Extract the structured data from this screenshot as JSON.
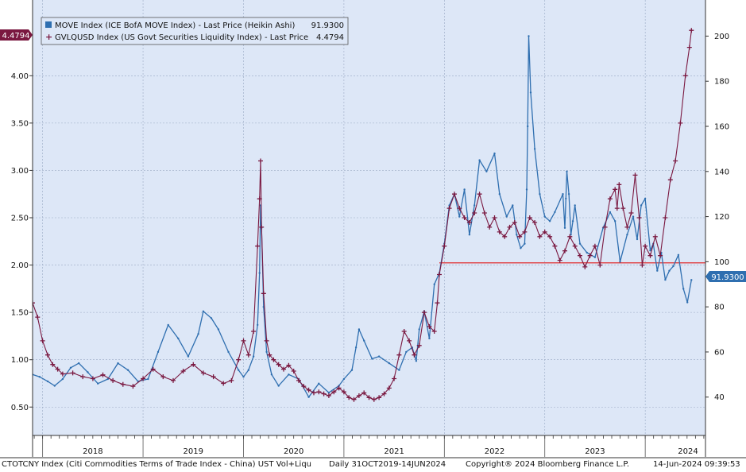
{
  "footer": {
    "source": "CTOTCNY Index (Citi Commodities Terms of Trade Index - China) UST Vol+Liqu",
    "range": "Daily 31OCT2019-14JUN2024",
    "copyright": "Copyright® 2024 Bloomberg Finance L.P.",
    "timestamp": "14-Jun-2024 09:39:53"
  },
  "colors": {
    "plot_bg": "#dde7f7",
    "grid": "#9aa9c4",
    "move": "#2f6fb0",
    "liquidity": "#7a1840",
    "ref_line": "#e01919",
    "left_tag": "#7a1840",
    "right_tag": "#2f6fb0"
  },
  "chart_data": {
    "type": "line",
    "x_tick_labels": [
      "2018",
      "2019",
      "2020",
      "2021",
      "2022",
      "2023",
      "2024"
    ],
    "x_range": [
      2017.9,
      2024.6
    ],
    "left_axis": {
      "ticks": [
        "0.50",
        "1.00",
        "1.50",
        "2.00",
        "2.50",
        "3.00",
        "3.50",
        "4.00"
      ],
      "range": [
        0.2,
        4.8
      ]
    },
    "right_axis": {
      "ticks": [
        "40",
        "60",
        "80",
        "100",
        "120",
        "140",
        "160",
        "180",
        "200"
      ],
      "range": [
        23,
        216
      ]
    },
    "legend": [
      {
        "label": "MOVE Index (ICE BofA MOVE Index) - Last Price (Heikin Ashi)",
        "value": "91.9300"
      },
      {
        "label": "GVLQUSD Index (US Govt Securities Liquidity Index) - Last Price",
        "value": "4.4794"
      }
    ],
    "last_value_tags": {
      "left": "4.4794",
      "right": "91.9300"
    },
    "reference_line": {
      "axis": "right",
      "value": 99.5,
      "from_x": 2021.95
    },
    "series": [
      {
        "name": "MOVE Index (ICE BofA MOVE Index) - Last Price (Heikin Ashi)",
        "axis": "right",
        "style": "line",
        "x": [
          2017.9,
          2017.97,
          2018.05,
          2018.12,
          2018.2,
          2018.28,
          2018.36,
          2018.45,
          2018.55,
          2018.65,
          2018.75,
          2018.85,
          2018.95,
          2019.05,
          2019.15,
          2019.25,
          2019.35,
          2019.45,
          2019.55,
          2019.6,
          2019.68,
          2019.75,
          2019.85,
          2019.95,
          2020.0,
          2020.05,
          2020.1,
          2020.14,
          2020.16,
          2020.17,
          2020.18,
          2020.2,
          2020.23,
          2020.28,
          2020.35,
          2020.45,
          2020.55,
          2020.65,
          2020.75,
          2020.85,
          2020.95,
          2021.0,
          2021.08,
          2021.12,
          2021.15,
          2021.2,
          2021.28,
          2021.35,
          2021.45,
          2021.55,
          2021.62,
          2021.68,
          2021.72,
          2021.75,
          2021.8,
          2021.85,
          2021.9,
          2021.95,
          2022.0,
          2022.05,
          2022.1,
          2022.15,
          2022.2,
          2022.25,
          2022.3,
          2022.35,
          2022.42,
          2022.5,
          2022.55,
          2022.62,
          2022.68,
          2022.72,
          2022.76,
          2022.8,
          2022.82,
          2022.83,
          2022.84,
          2022.86,
          2022.9,
          2022.95,
          2023.0,
          2023.05,
          2023.1,
          2023.18,
          2023.2,
          2023.21,
          2023.22,
          2023.24,
          2023.26,
          2023.28,
          2023.3,
          2023.35,
          2023.42,
          2023.5,
          2023.58,
          2023.65,
          2023.7,
          2023.75,
          2023.82,
          2023.88,
          2023.92,
          2023.96,
          2024.0,
          2024.05,
          2024.08,
          2024.12,
          2024.16,
          2024.2,
          2024.24,
          2024.28,
          2024.33,
          2024.38,
          2024.42,
          2024.46
        ],
        "y": [
          50,
          49,
          47,
          45,
          48,
          53,
          55,
          51,
          46,
          48,
          55,
          52,
          47,
          48,
          60,
          72,
          66,
          58,
          68,
          78,
          75,
          70,
          60,
          52,
          49,
          52,
          58,
          72,
          95,
          125,
          115,
          80,
          60,
          50,
          45,
          50,
          48,
          40,
          46,
          42,
          45,
          48,
          52,
          62,
          70,
          65,
          57,
          58,
          55,
          52,
          60,
          62,
          56,
          70,
          78,
          66,
          90,
          95,
          108,
          125,
          130,
          120,
          132,
          112,
          125,
          145,
          140,
          148,
          130,
          120,
          125,
          112,
          106,
          108,
          132,
          160,
          200,
          175,
          150,
          130,
          120,
          118,
          122,
          130,
          115,
          128,
          140,
          130,
          112,
          118,
          125,
          108,
          104,
          102,
          115,
          122,
          118,
          100,
          112,
          120,
          110,
          125,
          128,
          105,
          108,
          96,
          104,
          92,
          96,
          98,
          103,
          88,
          82,
          91.93
        ]
      },
      {
        "name": "GVLQUSD Index (US Govt Securities Liquidity Index) - Last Price",
        "axis": "left",
        "style": "cross",
        "x": [
          2017.9,
          2017.95,
          2018.0,
          2018.05,
          2018.1,
          2018.15,
          2018.2,
          2018.3,
          2018.4,
          2018.5,
          2018.6,
          2018.7,
          2018.8,
          2018.9,
          2019.0,
          2019.1,
          2019.2,
          2019.3,
          2019.4,
          2019.5,
          2019.6,
          2019.7,
          2019.8,
          2019.88,
          2019.95,
          2020.0,
          2020.05,
          2020.1,
          2020.14,
          2020.16,
          2020.17,
          2020.18,
          2020.2,
          2020.23,
          2020.26,
          2020.3,
          2020.35,
          2020.4,
          2020.45,
          2020.5,
          2020.55,
          2020.6,
          2020.65,
          2020.7,
          2020.75,
          2020.8,
          2020.85,
          2020.9,
          2020.95,
          2021.0,
          2021.05,
          2021.1,
          2021.15,
          2021.2,
          2021.25,
          2021.3,
          2021.35,
          2021.4,
          2021.45,
          2021.5,
          2021.55,
          2021.6,
          2021.65,
          2021.7,
          2021.75,
          2021.8,
          2021.85,
          2021.9,
          2021.93,
          2021.95,
          2022.0,
          2022.05,
          2022.1,
          2022.15,
          2022.2,
          2022.25,
          2022.3,
          2022.35,
          2022.4,
          2022.45,
          2022.5,
          2022.55,
          2022.6,
          2022.65,
          2022.7,
          2022.75,
          2022.8,
          2022.85,
          2022.9,
          2022.95,
          2023.0,
          2023.05,
          2023.1,
          2023.15,
          2023.2,
          2023.25,
          2023.3,
          2023.35,
          2023.4,
          2023.45,
          2023.5,
          2023.55,
          2023.6,
          2023.65,
          2023.7,
          2023.72,
          2023.74,
          2023.78,
          2023.82,
          2023.86,
          2023.9,
          2023.94,
          2023.97,
          2024.0,
          2024.05,
          2024.1,
          2024.15,
          2024.2,
          2024.25,
          2024.3,
          2024.35,
          2024.4,
          2024.44,
          2024.46
        ],
        "y": [
          1.6,
          1.45,
          1.2,
          1.05,
          0.95,
          0.9,
          0.85,
          0.86,
          0.82,
          0.8,
          0.84,
          0.78,
          0.74,
          0.72,
          0.8,
          0.9,
          0.82,
          0.78,
          0.88,
          0.95,
          0.86,
          0.82,
          0.75,
          0.78,
          1.0,
          1.2,
          1.05,
          1.3,
          2.2,
          2.7,
          3.1,
          2.4,
          1.7,
          1.2,
          1.05,
          1.0,
          0.95,
          0.9,
          0.94,
          0.88,
          0.78,
          0.72,
          0.68,
          0.65,
          0.66,
          0.64,
          0.62,
          0.66,
          0.7,
          0.66,
          0.6,
          0.58,
          0.62,
          0.65,
          0.6,
          0.58,
          0.6,
          0.64,
          0.7,
          0.8,
          1.05,
          1.3,
          1.2,
          1.05,
          1.15,
          1.5,
          1.35,
          1.3,
          1.6,
          1.9,
          2.2,
          2.6,
          2.75,
          2.6,
          2.5,
          2.45,
          2.55,
          2.75,
          2.55,
          2.4,
          2.5,
          2.35,
          2.3,
          2.4,
          2.45,
          2.3,
          2.35,
          2.5,
          2.45,
          2.3,
          2.35,
          2.3,
          2.2,
          2.05,
          2.15,
          2.3,
          2.2,
          2.1,
          1.98,
          2.1,
          2.2,
          2.0,
          2.4,
          2.7,
          2.8,
          2.6,
          2.85,
          2.6,
          2.4,
          2.55,
          2.95,
          2.5,
          2.0,
          2.2,
          2.1,
          2.3,
          2.1,
          2.5,
          2.9,
          3.1,
          3.5,
          4.0,
          4.3,
          4.4794
        ]
      }
    ]
  }
}
